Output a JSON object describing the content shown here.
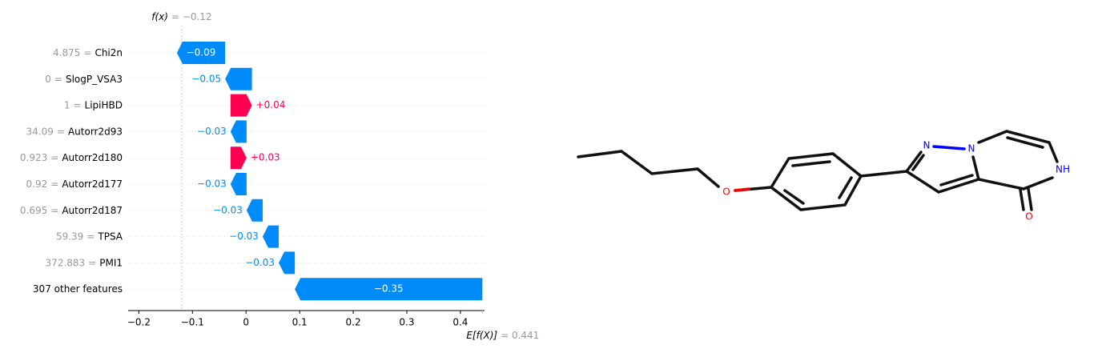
{
  "chart_data": {
    "type": "waterfall",
    "categories": [
      "Chi2n",
      "SlogP_VSA3",
      "LipiHBD",
      "Autorr2d93",
      "Autorr2d180",
      "Autorr2d177",
      "Autorr2d187",
      "TPSA",
      "PMI1",
      "307 other features"
    ],
    "feature_values": [
      "4.875",
      "0",
      "1",
      "34.09",
      "0.923",
      "0.92",
      "0.695",
      "59.39",
      "372.883",
      null
    ],
    "value_separator": "=",
    "values": [
      -0.09,
      -0.05,
      0.04,
      -0.03,
      0.03,
      -0.03,
      -0.03,
      -0.03,
      -0.03,
      -0.35
    ],
    "value_labels": [
      "−0.09",
      "−0.05",
      "+0.04",
      "−0.03",
      "+0.03",
      "−0.03",
      "−0.03",
      "−0.03",
      "−0.03",
      "−0.35"
    ],
    "positive_color": "#ff0051",
    "negative_color": "#008bfb",
    "final": {
      "label": "f(x)",
      "value": -0.12,
      "value_label": "= −0.12"
    },
    "base": {
      "label": "E[f(X)]",
      "value": 0.441,
      "value_label": "= 0.441"
    },
    "xlim": [
      -0.22,
      0.445
    ],
    "xticks": [
      {
        "value": -0.2,
        "label": "−0.2"
      },
      {
        "value": -0.1,
        "label": "−0.1"
      },
      0.0,
      0.1,
      0.2,
      0.3,
      0.4
    ]
  },
  "molecule": {
    "atoms": [
      "O",
      "N",
      "N",
      "NH",
      "O"
    ]
  }
}
